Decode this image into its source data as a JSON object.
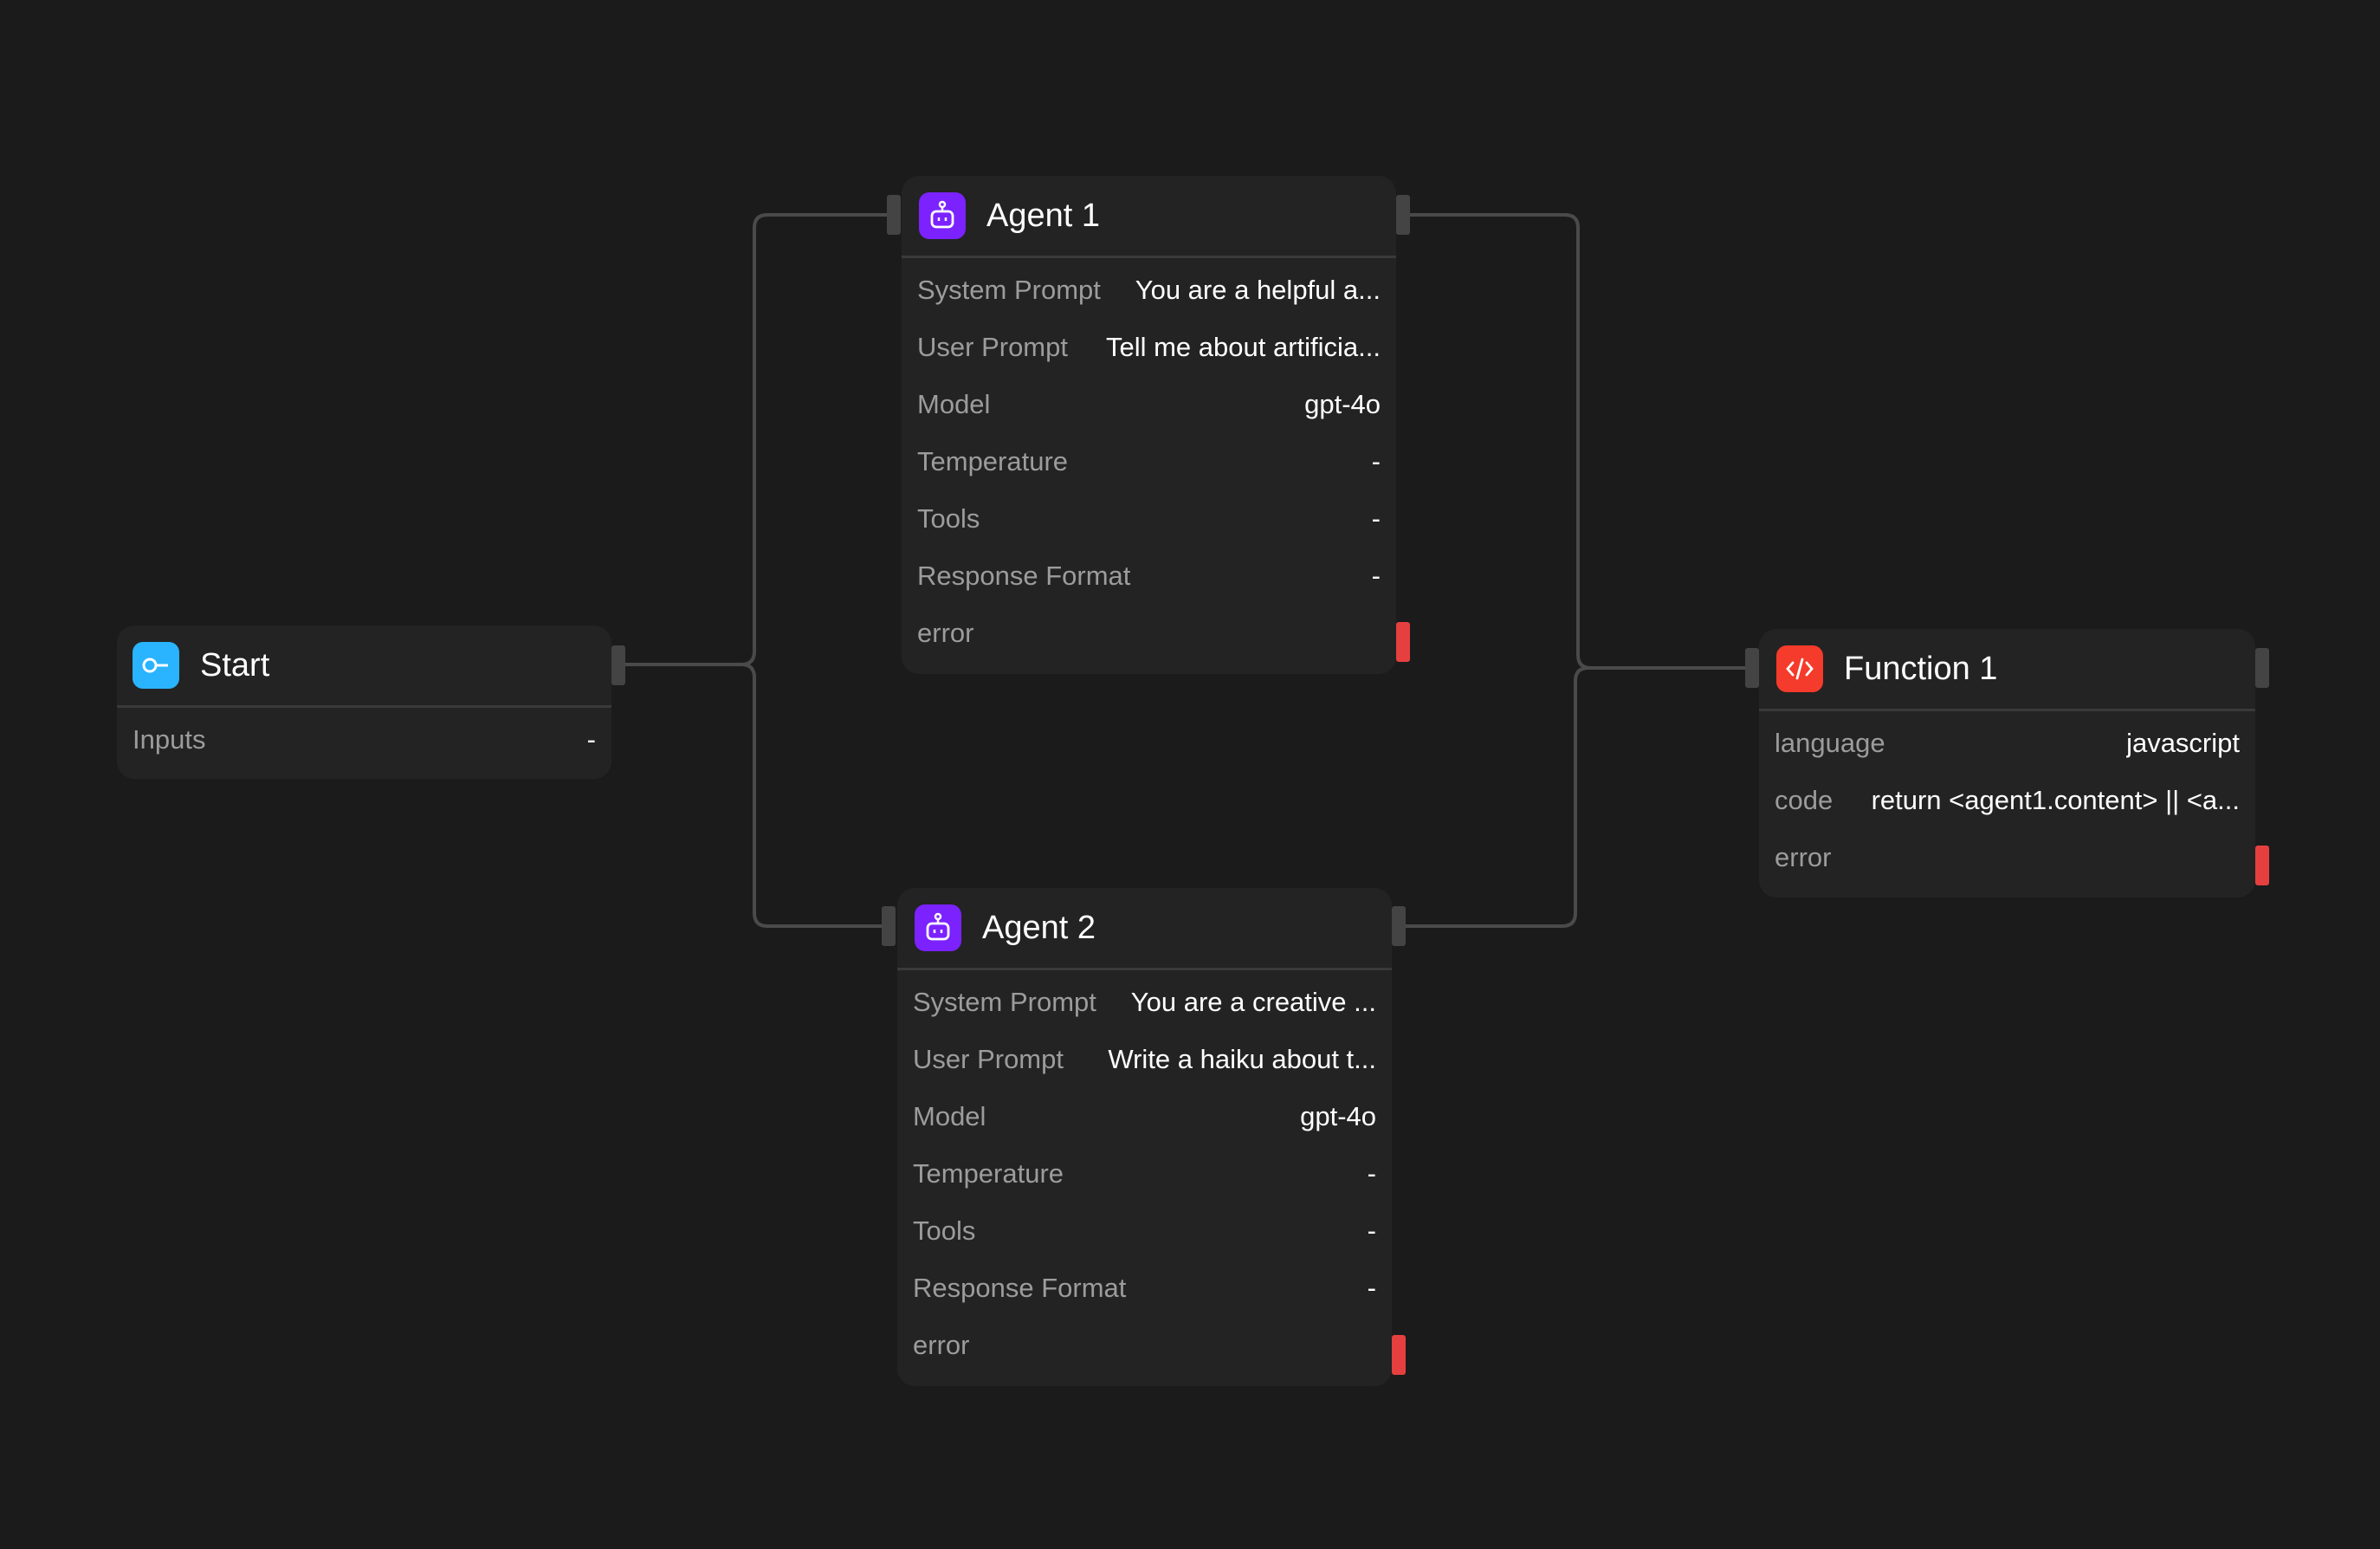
{
  "colors": {
    "background": "#1b1b1b",
    "node": "#232323",
    "edge": "#4a4a4a",
    "start_icon": "#2ab3ff",
    "agent_icon": "#7b22ff",
    "function_icon": "#f53b2b",
    "error_handle": "#e5403f"
  },
  "nodes": {
    "start": {
      "title": "Start",
      "icon": "key-icon",
      "rows": [
        {
          "label": "Inputs",
          "value": "-"
        }
      ]
    },
    "agent1": {
      "title": "Agent 1",
      "icon": "robot-icon",
      "rows": [
        {
          "label": "System Prompt",
          "value": "You are a helpful a..."
        },
        {
          "label": "User Prompt",
          "value": "Tell me about artificia..."
        },
        {
          "label": "Model",
          "value": "gpt-4o"
        },
        {
          "label": "Temperature",
          "value": "-"
        },
        {
          "label": "Tools",
          "value": "-"
        },
        {
          "label": "Response Format",
          "value": "-"
        },
        {
          "label": "error",
          "value": ""
        }
      ]
    },
    "agent2": {
      "title": "Agent 2",
      "icon": "robot-icon",
      "rows": [
        {
          "label": "System Prompt",
          "value": "You are a creative ..."
        },
        {
          "label": "User Prompt",
          "value": "Write a haiku about t..."
        },
        {
          "label": "Model",
          "value": "gpt-4o"
        },
        {
          "label": "Temperature",
          "value": "-"
        },
        {
          "label": "Tools",
          "value": "-"
        },
        {
          "label": "Response Format",
          "value": "-"
        },
        {
          "label": "error",
          "value": ""
        }
      ]
    },
    "function1": {
      "title": "Function 1",
      "icon": "code-icon",
      "rows": [
        {
          "label": "language",
          "value": "javascript"
        },
        {
          "label": "code",
          "value": "return <agent1.content> || <a..."
        },
        {
          "label": "error",
          "value": ""
        }
      ]
    }
  }
}
